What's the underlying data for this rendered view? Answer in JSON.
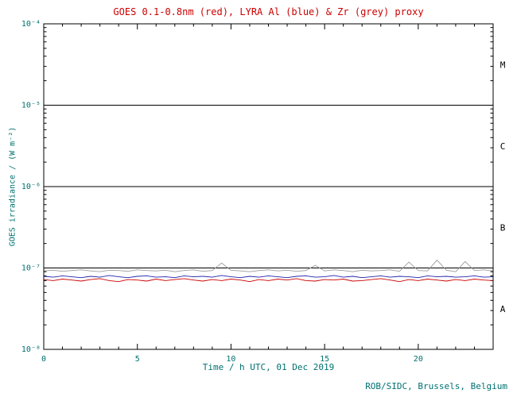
{
  "footer": {
    "credit": "ROB/SIDC, Brussels, Belgium"
  },
  "chart_data": {
    "type": "line",
    "title": "GOES 0.1-0.8nm (red), LYRA Al (blue) & Zr (grey) proxy",
    "xlabel": "Time / h UTC, 01 Dec 2019",
    "ylabel": "GOES irradiance / (W m⁻²)",
    "x_range": [
      0,
      24
    ],
    "x_major_ticks": [
      0,
      5,
      10,
      15,
      20
    ],
    "x_minor_step": 1,
    "y_log_range": [
      -8,
      -4
    ],
    "y_ticks": [
      {
        "label": "10⁻⁴",
        "exp": -4
      },
      {
        "label": "10⁻⁵",
        "exp": -5
      },
      {
        "label": "10⁻⁶",
        "exp": -6
      },
      {
        "label": "10⁻⁷",
        "exp": -7
      },
      {
        "label": "10⁻⁸",
        "exp": -8
      }
    ],
    "hline_exponents": [
      -5,
      -6,
      -7
    ],
    "flare_classes": [
      {
        "label": "M",
        "log_center": -4.5
      },
      {
        "label": "C",
        "log_center": -5.5
      },
      {
        "label": "B",
        "log_center": -6.5
      },
      {
        "label": "A",
        "log_center": -7.5
      }
    ],
    "grid": "off",
    "legend": "in-title",
    "value_scale": 1e-08,
    "x_start": 0,
    "x_step": 0.5,
    "series": [
      {
        "id": "lyra-zr-proxy",
        "name": "LYRA Zr proxy",
        "color": "#9a9a9a",
        "values": [
          9.2,
          9.4,
          9.1,
          9.3,
          9.5,
          9.2,
          9.0,
          9.4,
          9.3,
          9.1,
          9.5,
          9.3,
          9.2,
          9.4,
          9.0,
          9.3,
          9.5,
          9.1,
          9.3,
          11.5,
          9.4,
          9.2,
          9.0,
          9.3,
          9.5,
          9.2,
          9.4,
          9.1,
          9.3,
          10.8,
          9.2,
          9.5,
          9.3,
          9.0,
          9.4,
          9.2,
          9.3,
          9.5,
          9.1,
          11.8,
          9.3,
          9.2,
          12.5,
          9.4,
          9.0,
          12.0,
          9.3,
          9.5,
          9.2
        ]
      },
      {
        "id": "lyra-al-proxy",
        "name": "LYRA Al proxy",
        "color": "#2222aa",
        "values": [
          7.9,
          7.7,
          8.0,
          7.8,
          7.6,
          7.9,
          7.7,
          8.1,
          7.8,
          7.6,
          7.9,
          8.0,
          7.7,
          7.8,
          7.6,
          8.0,
          7.8,
          7.9,
          7.7,
          8.1,
          7.8,
          7.6,
          7.9,
          7.7,
          8.0,
          7.8,
          7.6,
          7.9,
          8.0,
          7.7,
          7.8,
          8.1,
          7.7,
          7.9,
          7.6,
          7.8,
          8.0,
          7.7,
          7.9,
          7.8,
          7.6,
          8.0,
          7.8,
          7.9,
          7.7,
          7.8,
          8.0,
          7.7,
          7.8
        ]
      },
      {
        "id": "goes-0-1-0-8nm",
        "name": "GOES 0.1-0.8nm",
        "color": "#cc0000",
        "values": [
          7.2,
          7.0,
          7.3,
          7.1,
          6.9,
          7.2,
          7.4,
          7.0,
          6.8,
          7.2,
          7.1,
          6.9,
          7.3,
          7.0,
          7.2,
          7.4,
          7.1,
          6.9,
          7.2,
          7.0,
          7.3,
          7.1,
          6.8,
          7.2,
          7.0,
          7.3,
          7.1,
          7.4,
          7.0,
          6.9,
          7.2,
          7.1,
          7.3,
          6.9,
          7.0,
          7.2,
          7.4,
          7.1,
          6.8,
          7.2,
          7.0,
          7.3,
          7.1,
          6.9,
          7.2,
          7.0,
          7.3,
          7.1,
          7.0
        ]
      }
    ],
    "colors": {
      "title": "#cc0000",
      "axis_text": "#007070",
      "frame": "#000000",
      "class_labels": "#000000"
    }
  }
}
